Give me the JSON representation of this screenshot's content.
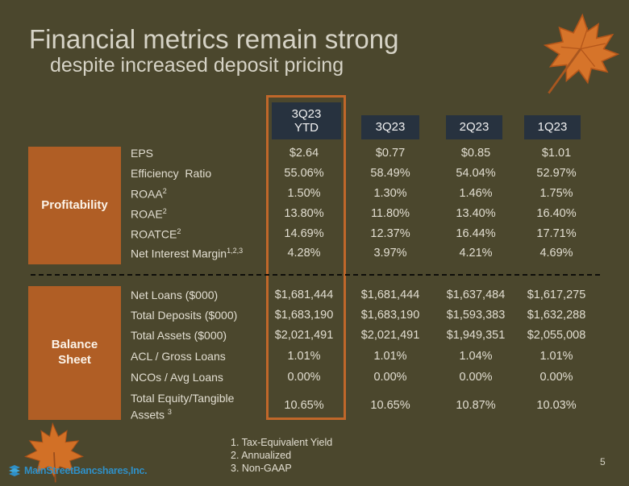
{
  "header": {
    "title": "Financial metrics remain strong",
    "subtitle": "despite increased deposit pricing"
  },
  "columns": [
    {
      "line1": "3Q23",
      "line2": "YTD"
    },
    {
      "line1": "3Q23",
      "line2": ""
    },
    {
      "line1": "2Q23",
      "line2": ""
    },
    {
      "line1": "1Q23",
      "line2": ""
    }
  ],
  "sections": {
    "profitability": "Profitability",
    "balance_line1": "Balance",
    "balance_line2": "Sheet"
  },
  "rows": [
    {
      "label": "EPS",
      "sup": "",
      "values": [
        "$2.64",
        "$0.77",
        "$0.85",
        "$1.01"
      ]
    },
    {
      "label": "Efficiency  Ratio",
      "sup": "",
      "values": [
        "55.06%",
        "58.49%",
        "54.04%",
        "52.97%"
      ]
    },
    {
      "label": "ROAA",
      "sup": "2",
      "values": [
        "1.50%",
        "1.30%",
        "1.46%",
        "1.75%"
      ]
    },
    {
      "label": "ROAE",
      "sup": "2",
      "values": [
        "13.80%",
        "11.80%",
        "13.40%",
        "16.40%"
      ]
    },
    {
      "label": "ROATCE",
      "sup": "2",
      "values": [
        "14.69%",
        "12.37%",
        "16.44%",
        "17.71%"
      ]
    },
    {
      "label": "Net Interest Margin",
      "sup": "1,2,3",
      "values": [
        "4.28%",
        "3.97%",
        "4.21%",
        "4.69%"
      ]
    },
    {
      "label": "Net Loans ($000)",
      "sup": "",
      "values": [
        "$1,681,444",
        "$1,681,444",
        "$1,637,484",
        "$1,617,275"
      ]
    },
    {
      "label": "Total Deposits ($000)",
      "sup": "",
      "values": [
        "$1,683,190",
        "$1,683,190",
        "$1,593,383",
        "$1,632,288"
      ]
    },
    {
      "label": "Total Assets ($000)",
      "sup": "",
      "values": [
        "$2,021,491",
        "$2,021,491",
        "$1,949,351",
        "$2,055,008"
      ]
    },
    {
      "label": "ACL / Gross Loans",
      "sup": "",
      "values": [
        "1.01%",
        "1.01%",
        "1.04%",
        "1.01%"
      ]
    },
    {
      "label": "NCOs / Avg Loans",
      "sup": "",
      "values": [
        "0.00%",
        "0.00%",
        "0.00%",
        "0.00%"
      ]
    },
    {
      "label": "Total Equity/Tangible",
      "label2": "Assets",
      "sup": "3",
      "values": [
        "10.65%",
        "10.65%",
        "10.87%",
        "10.03%"
      ]
    }
  ],
  "footnotes": [
    "1. Tax-Equivalent Yield",
    "2. Annualized",
    "3. Non-GAAP"
  ],
  "page_number": "5",
  "logo_text": "MainStreetBancshares,Inc."
}
